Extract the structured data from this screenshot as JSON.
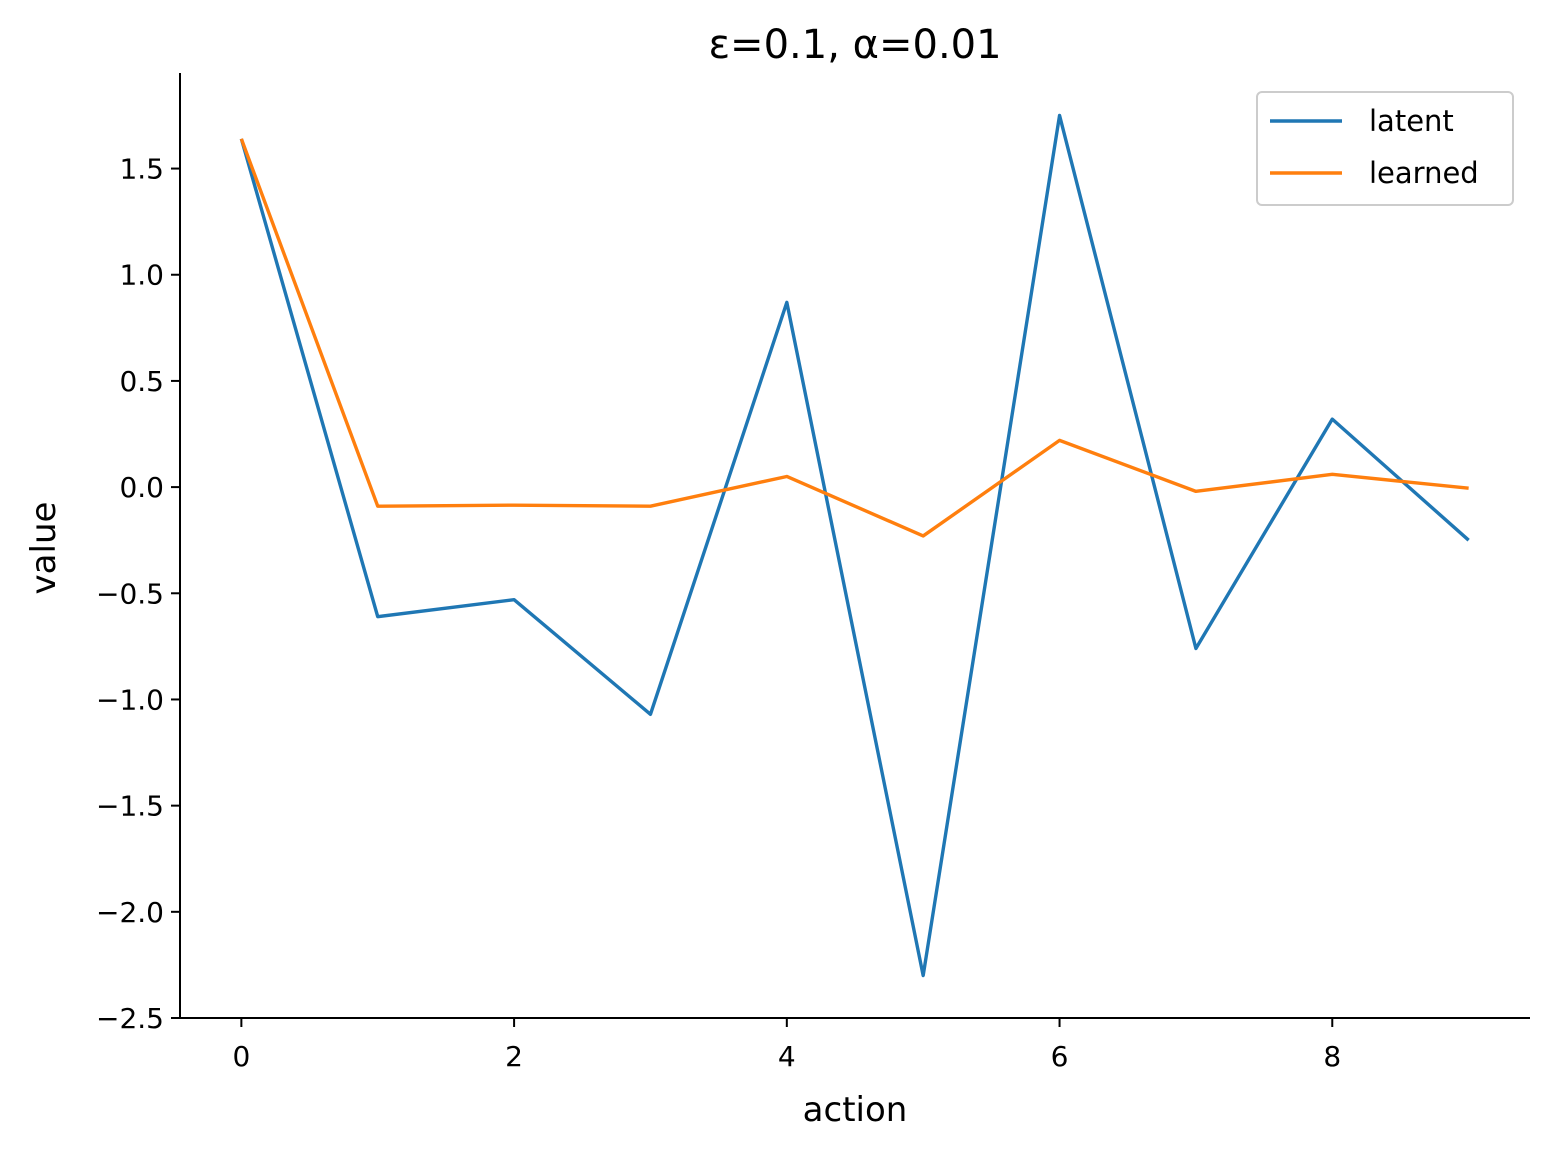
{
  "chart_data": {
    "type": "line",
    "title": "ε=0.1, α=0.01",
    "xlabel": "action",
    "ylabel": "value",
    "x": [
      0,
      1,
      2,
      3,
      4,
      5,
      6,
      7,
      8,
      9
    ],
    "xlim": [
      -0.45,
      9.45
    ],
    "ylim": [
      -2.5,
      1.95
    ],
    "xticks": [
      0,
      2,
      4,
      6,
      8
    ],
    "xtick_labels": [
      "0",
      "2",
      "4",
      "6",
      "8"
    ],
    "yticks": [
      1.5,
      1.0,
      0.5,
      0.0,
      -0.5,
      -1.0,
      -1.5,
      -2.0,
      -2.5
    ],
    "ytick_labels": [
      "1.5",
      "1.0",
      "0.5",
      "0.0",
      "−0.5",
      "−1.0",
      "−1.5",
      "−2.0",
      "−2.5"
    ],
    "series": [
      {
        "name": "latent",
        "color": "#1f77b4",
        "values": [
          1.64,
          -0.61,
          -0.53,
          -1.07,
          0.87,
          -2.3,
          1.75,
          -0.76,
          0.32,
          -0.25
        ]
      },
      {
        "name": "learned",
        "color": "#ff7f0e",
        "values": [
          1.64,
          -0.09,
          -0.085,
          -0.09,
          0.05,
          -0.23,
          0.22,
          -0.02,
          0.06,
          -0.005
        ]
      }
    ],
    "legend_position": "top-right",
    "grid": false,
    "spines": "left-bottom"
  }
}
